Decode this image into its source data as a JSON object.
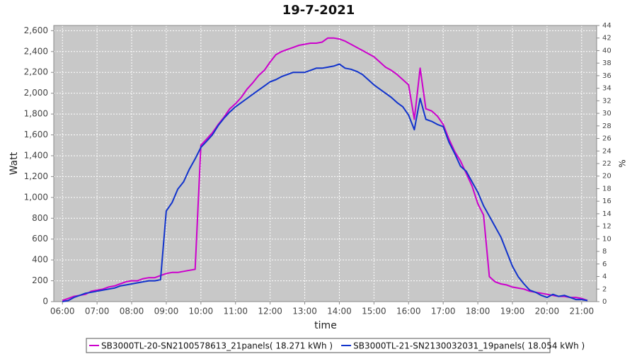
{
  "chart_data": {
    "type": "line",
    "title": "19-7-2021",
    "x_label": "time",
    "y_label": "Watt",
    "y2_label": "%",
    "x": [
      "06:00",
      "06:10",
      "06:20",
      "06:30",
      "06:40",
      "06:50",
      "07:00",
      "07:10",
      "07:20",
      "07:30",
      "07:40",
      "07:50",
      "08:00",
      "08:10",
      "08:20",
      "08:30",
      "08:40",
      "08:50",
      "09:00",
      "09:10",
      "09:20",
      "09:30",
      "09:40",
      "09:50",
      "10:00",
      "10:10",
      "10:20",
      "10:30",
      "10:40",
      "10:50",
      "11:00",
      "11:10",
      "11:20",
      "11:30",
      "11:40",
      "11:50",
      "12:00",
      "12:10",
      "12:20",
      "12:30",
      "12:40",
      "12:50",
      "13:00",
      "13:10",
      "13:20",
      "13:30",
      "13:40",
      "13:50",
      "14:00",
      "14:10",
      "14:20",
      "14:30",
      "14:40",
      "14:50",
      "15:00",
      "15:10",
      "15:20",
      "15:30",
      "15:40",
      "15:50",
      "16:00",
      "16:10",
      "16:20",
      "16:30",
      "16:40",
      "16:50",
      "17:00",
      "17:10",
      "17:20",
      "17:30",
      "17:40",
      "17:50",
      "18:00",
      "18:10",
      "18:20",
      "18:30",
      "18:40",
      "18:50",
      "19:00",
      "19:10",
      "19:20",
      "19:30",
      "19:40",
      "19:50",
      "20:00",
      "20:10",
      "20:20",
      "20:30",
      "20:40",
      "20:50",
      "21:00",
      "21:10"
    ],
    "series": [
      {
        "name": "SB3000TL-20-SN2100578613_21panels( 18.271 kWh )",
        "color": "#cc00cc",
        "values": [
          10,
          30,
          50,
          60,
          70,
          100,
          110,
          120,
          140,
          150,
          170,
          190,
          200,
          200,
          220,
          230,
          230,
          250,
          270,
          280,
          280,
          290,
          300,
          310,
          1500,
          1560,
          1620,
          1700,
          1770,
          1850,
          1900,
          1960,
          2040,
          2100,
          2170,
          2220,
          2300,
          2370,
          2400,
          2420,
          2440,
          2460,
          2470,
          2480,
          2480,
          2490,
          2530,
          2530,
          2520,
          2500,
          2470,
          2440,
          2410,
          2380,
          2350,
          2300,
          2250,
          2220,
          2180,
          2130,
          2080,
          1750,
          2240,
          1850,
          1830,
          1780,
          1700,
          1560,
          1440,
          1350,
          1230,
          1110,
          940,
          830,
          240,
          190,
          170,
          160,
          140,
          130,
          120,
          100,
          90,
          80,
          70,
          60,
          50,
          50,
          40,
          40,
          30,
          10
        ]
      },
      {
        "name": "SB3000TL-21-SN2130032031_19panels( 18.054 kWh )",
        "color": "#1133cc",
        "values": [
          0,
          10,
          40,
          60,
          80,
          90,
          100,
          110,
          120,
          130,
          150,
          160,
          170,
          180,
          190,
          200,
          200,
          210,
          870,
          950,
          1080,
          1150,
          1270,
          1370,
          1480,
          1540,
          1600,
          1690,
          1760,
          1820,
          1870,
          1910,
          1950,
          1990,
          2030,
          2070,
          2110,
          2130,
          2160,
          2180,
          2200,
          2200,
          2200,
          2220,
          2240,
          2240,
          2250,
          2260,
          2280,
          2240,
          2230,
          2210,
          2180,
          2130,
          2080,
          2040,
          2000,
          1960,
          1910,
          1870,
          1790,
          1650,
          1950,
          1750,
          1730,
          1700,
          1680,
          1530,
          1420,
          1300,
          1250,
          1150,
          1050,
          920,
          820,
          720,
          620,
          480,
          340,
          240,
          170,
          110,
          90,
          60,
          40,
          70,
          50,
          60,
          40,
          20,
          20,
          10
        ]
      }
    ],
    "xlim": [
      "05:45",
      "21:26"
    ],
    "xticks": [
      "06:00",
      "07:00",
      "08:00",
      "09:00",
      "10:00",
      "11:00",
      "12:00",
      "13:00",
      "14:00",
      "15:00",
      "16:00",
      "17:00",
      "18:00",
      "19:00",
      "20:00",
      "21:00"
    ],
    "ylim": [
      0,
      2650
    ],
    "yticks": [
      0,
      200,
      400,
      600,
      800,
      {
        "value": 1000,
        "label": "1,000"
      },
      {
        "value": 1200,
        "label": "1,200"
      },
      {
        "value": 1400,
        "label": "1,400"
      },
      {
        "value": 1600,
        "label": "1,600"
      },
      {
        "value": 1800,
        "label": "1,800"
      },
      {
        "value": 2000,
        "label": "2,000"
      },
      {
        "value": 2200,
        "label": "2,200"
      },
      {
        "value": 2400,
        "label": "2,400"
      },
      {
        "value": 2600,
        "label": "2,600"
      }
    ],
    "y2lim": [
      0,
      44
    ],
    "y2ticks": [
      0,
      2,
      4,
      6,
      8,
      10,
      12,
      14,
      16,
      18,
      20,
      22,
      24,
      26,
      28,
      30,
      32,
      34,
      36,
      38,
      40,
      42,
      44
    ],
    "grid": true,
    "legend": "bottom",
    "background": "#c8c8c8"
  }
}
